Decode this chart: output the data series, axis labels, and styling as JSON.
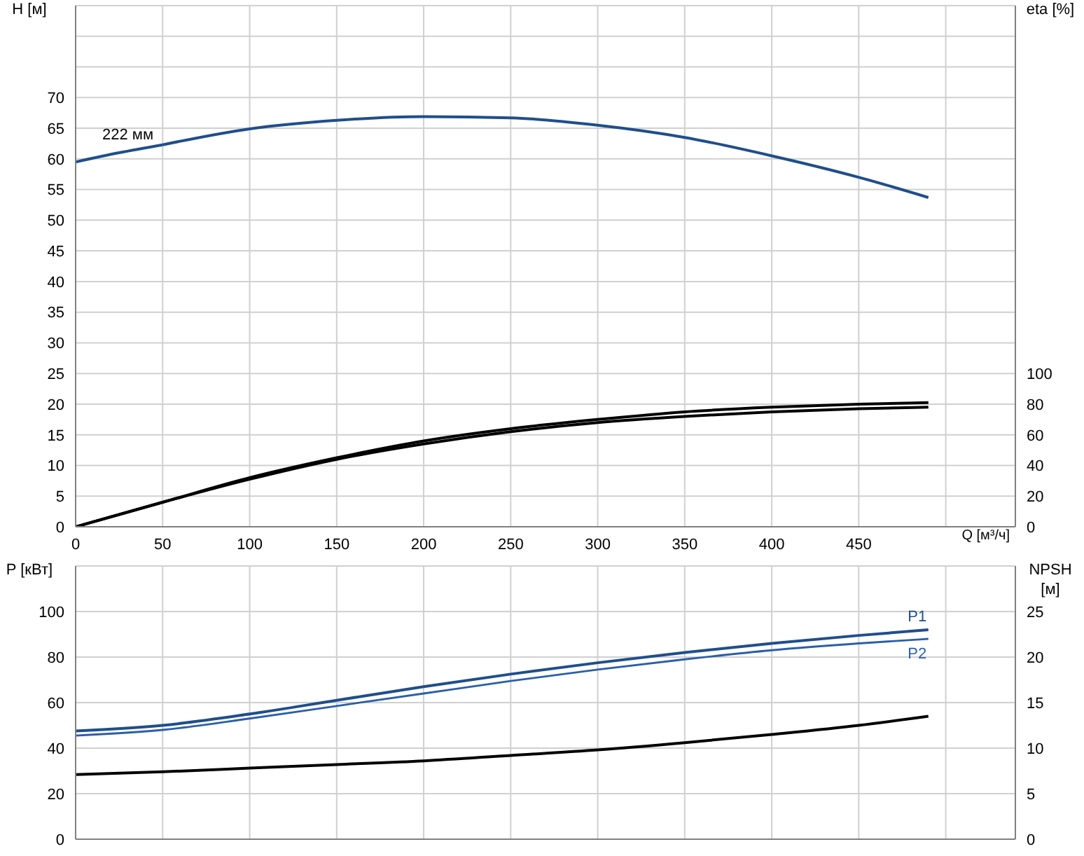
{
  "chart_data": [
    {
      "type": "line",
      "ylabel": "H [м]",
      "y2label": "eta [%]",
      "xlabel": "Q [м³/ч]",
      "xlim": [
        0,
        540
      ],
      "xticks": [
        0,
        50,
        100,
        150,
        200,
        250,
        300,
        350,
        400,
        450,
        {
          "value": 500,
          "label": null
        }
      ],
      "ylim": [
        0,
        85
      ],
      "yticks": [
        0,
        5,
        10,
        15,
        20,
        25,
        30,
        35,
        40,
        45,
        50,
        55,
        60,
        65,
        70,
        {
          "value": 75,
          "label": null
        },
        {
          "value": 80,
          "label": null
        }
      ],
      "y2lim": [
        0,
        340
      ],
      "y2ticks": [
        0,
        20,
        40,
        60,
        80,
        100
      ],
      "grid": true,
      "marker": "none",
      "line_style": "solid",
      "annotations": [
        {
          "text": "222 мм",
          "x": 30,
          "y": 62
        }
      ],
      "series": [
        {
          "color": "#1f4e8c",
          "x": [
            0,
            25,
            50
          ],
          "values": [
            59.5,
            61,
            62.3
          ]
        },
        {
          "color": "#1f4e8c",
          "x": [
            50,
            100,
            150,
            200,
            250,
            300,
            350,
            400,
            450,
            490
          ],
          "values": [
            62.3,
            64.9,
            66.3,
            66.9,
            66.7,
            65.5,
            63.5,
            60.5,
            57,
            53.7
          ]
        },
        {
          "color": "#000000",
          "axis": "y2",
          "x": [
            0,
            50,
            100,
            150,
            200,
            250,
            300,
            350,
            400,
            450,
            490
          ],
          "values": [
            0,
            16,
            32,
            45,
            56,
            64,
            70,
            75,
            78,
            80,
            81
          ]
        },
        {
          "color": "#000000",
          "axis": "y2",
          "x": [
            0,
            50,
            100,
            150,
            200,
            250,
            300,
            350,
            400,
            450,
            490
          ],
          "values": [
            0,
            16,
            31,
            44,
            54,
            62,
            68,
            72,
            75,
            77,
            78
          ]
        }
      ]
    },
    {
      "type": "line",
      "ylabel": "P [кВт]",
      "y2label": "NPSH [м]",
      "xlim": [
        0,
        540
      ],
      "xticks": [
        0,
        50,
        100,
        150,
        200,
        250,
        300,
        350,
        400,
        450,
        500
      ],
      "ylim": [
        0,
        120
      ],
      "yticks": [
        0,
        20,
        40,
        60,
        80,
        100
      ],
      "y2lim": [
        0,
        30
      ],
      "y2ticks": [
        0,
        5,
        10,
        15,
        20,
        25
      ],
      "tick_labels": "y",
      "grid": true,
      "marker": "none",
      "line_style": "solid",
      "series": [
        {
          "name": "P1",
          "color": "#1f4e8c",
          "x": [
            0,
            50,
            100,
            150,
            200,
            250,
            300,
            350,
            400,
            450,
            490
          ],
          "values": [
            47.5,
            50,
            55,
            61,
            67,
            72.5,
            77.5,
            82,
            86,
            89.5,
            92
          ]
        },
        {
          "name": "P2",
          "color": "#2b5fa8",
          "x": [
            0,
            50,
            100,
            150,
            200,
            250,
            300,
            350,
            400,
            450,
            490
          ],
          "values": [
            45.5,
            48,
            53,
            58.5,
            64,
            69.5,
            74.5,
            79,
            83,
            86,
            88
          ]
        },
        {
          "color": "#000000",
          "axis": "y2",
          "x": [
            0,
            50,
            100,
            150,
            200,
            250,
            300,
            350,
            400,
            450,
            490
          ],
          "values": [
            7.1,
            7.4,
            7.8,
            8.2,
            8.6,
            9.2,
            9.8,
            10.6,
            11.5,
            12.5,
            13.5
          ]
        }
      ]
    }
  ]
}
